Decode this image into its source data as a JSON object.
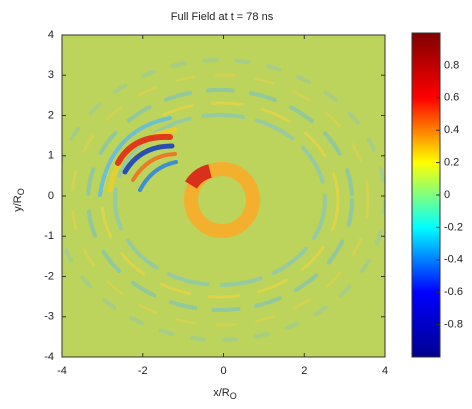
{
  "chart_data": {
    "type": "field",
    "title": "Full Field at t = 78 ns",
    "xlabel": {
      "text": "x/R",
      "subscript": "O"
    },
    "ylabel": {
      "text": "y/R",
      "subscript": "O"
    },
    "xlim": [
      -4,
      4
    ],
    "xticks": [
      -4,
      -2,
      0,
      2,
      4
    ],
    "ylim": [
      -4,
      4
    ],
    "yticks": [
      -4,
      -3,
      -2,
      -1,
      0,
      1,
      2,
      3,
      4
    ],
    "colormap": "jet",
    "clim": [
      -1,
      1
    ],
    "cticks": [
      -0.8,
      -0.6,
      -0.4,
      -0.2,
      0,
      0.2,
      0.4,
      0.6,
      0.8
    ]
  }
}
